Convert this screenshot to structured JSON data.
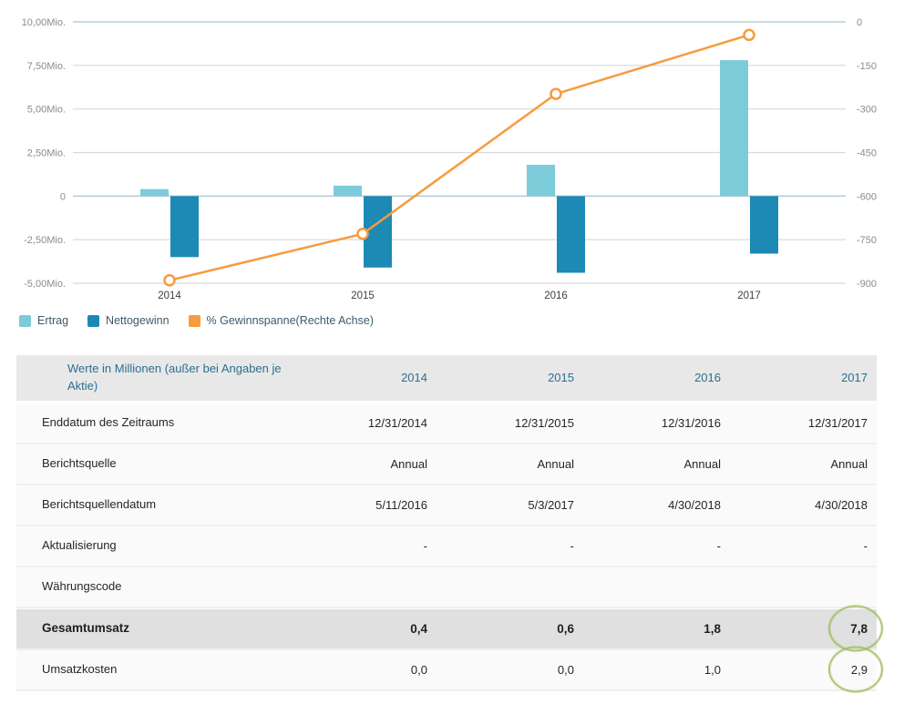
{
  "chart_data": {
    "type": "bar+line combo",
    "categories": [
      "2014",
      "2015",
      "2016",
      "2017"
    ],
    "series": [
      {
        "name": "Ertrag",
        "type": "bar",
        "axis": "left",
        "color": "#7ccbd9",
        "values": [
          0.4,
          0.6,
          1.8,
          7.8
        ]
      },
      {
        "name": "Nettogewinn",
        "type": "bar",
        "axis": "left",
        "color": "#1c8ab5",
        "values": [
          -3.5,
          -4.1,
          -4.4,
          -3.3
        ]
      },
      {
        "name": "% Gewinnspanne(Rechte Achse)",
        "type": "line",
        "axis": "right",
        "color": "#f79b3d",
        "values": [
          -890,
          -730,
          -248,
          -45
        ]
      }
    ],
    "left_axis": {
      "tick_labels": [
        "10,00Mio.",
        "7,50Mio.",
        "5,00Mio.",
        "2,50Mio.",
        "0",
        "-2,50Mio.",
        "-5,00Mio."
      ],
      "tick_values": [
        10,
        7.5,
        5,
        2.5,
        0,
        -2.5,
        -5
      ],
      "max": 10,
      "min": -5
    },
    "right_axis": {
      "tick_labels": [
        "0",
        "-150",
        "-300",
        "-450",
        "-600",
        "-750",
        "-900"
      ],
      "tick_values": [
        0,
        -150,
        -300,
        -450,
        -600,
        -750,
        -900
      ],
      "max": 0,
      "min": -900
    },
    "grid": true,
    "legend_position": "bottom-left"
  },
  "table": {
    "header": {
      "label": "Werte in Millionen (außer bei Angaben je Aktie)",
      "columns": [
        "2014",
        "2015",
        "2016",
        "2017"
      ]
    },
    "rows": [
      {
        "label": "Enddatum des Zeitraums",
        "values": [
          "12/31/2014",
          "12/31/2015",
          "12/31/2016",
          "12/31/2017"
        ],
        "bold": false,
        "highlight": false,
        "circle_last": false
      },
      {
        "label": "Berichtsquelle",
        "values": [
          "Annual",
          "Annual",
          "Annual",
          "Annual"
        ],
        "bold": false,
        "highlight": false,
        "circle_last": false
      },
      {
        "label": "Berichtsquellendatum",
        "values": [
          "5/11/2016",
          "5/3/2017",
          "4/30/2018",
          "4/30/2018"
        ],
        "bold": false,
        "highlight": false,
        "circle_last": false
      },
      {
        "label": "Aktualisierung",
        "values": [
          "-",
          "-",
          "-",
          "-"
        ],
        "bold": false,
        "highlight": false,
        "circle_last": false
      },
      {
        "label": "Währungscode",
        "values": [
          "",
          "",
          "",
          ""
        ],
        "bold": false,
        "highlight": false,
        "circle_last": false
      },
      {
        "label": "Gesamtumsatz",
        "values": [
          "0,4",
          "0,6",
          "1,8",
          "7,8"
        ],
        "bold": true,
        "highlight": true,
        "circle_last": true
      },
      {
        "label": "Umsatzkosten",
        "values": [
          "0,0",
          "0,0",
          "1,0",
          "2,9"
        ],
        "bold": false,
        "highlight": false,
        "circle_last": true
      }
    ]
  },
  "annotations": {
    "circled_values": [
      {
        "row": "Gesamtumsatz",
        "column": "2017",
        "value": "7,8"
      },
      {
        "row": "Umsatzkosten",
        "column": "2017",
        "value": "2,9"
      }
    ],
    "circle_color": "#a0be5f"
  },
  "colors": {
    "bar_light": "#7ccbd9",
    "bar_dark": "#1c8ab5",
    "line_orange": "#f79b3d",
    "grid": "#d9d9d9",
    "zero_line": "#b9cdda",
    "axis_text": "#8b8b8b",
    "year_text": "#3f3f3f",
    "legend_text": "#3d5a6b",
    "header_text": "#2b6f91",
    "header_bg": "#e8e8e8",
    "row_bg": "#fafafa",
    "highlight_row_bg": "#e0e0e0",
    "cell_text": "#262626"
  }
}
